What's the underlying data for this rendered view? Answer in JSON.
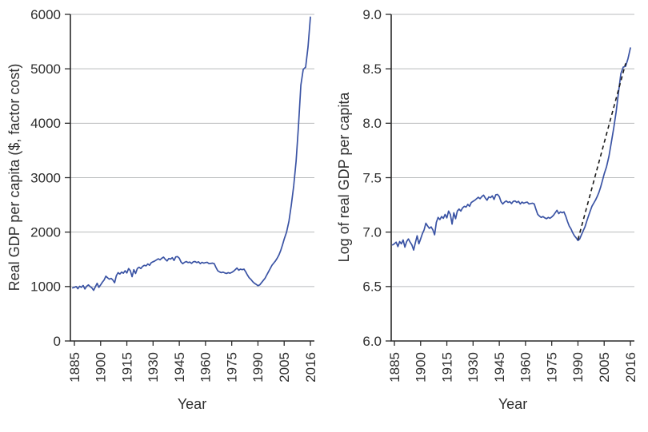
{
  "figure": {
    "background": "#ffffff",
    "line_color": "#3a53a4",
    "grid_color": "#b9bbbd",
    "axis_color": "#2a2a2a",
    "text_color": "#2e2e2e",
    "trend_color": "#1a1a1a"
  },
  "chart_data": [
    {
      "type": "line",
      "panel": "left",
      "title": "",
      "xlabel": "Year",
      "ylabel": "Real GDP per capita ($, factor cost)",
      "x_tick_labels": [
        "1885",
        "1900",
        "1915",
        "1930",
        "1945",
        "1960",
        "1975",
        "1990",
        "2005",
        "2016"
      ],
      "x_tick_years": [
        1885,
        1900,
        1915,
        1930,
        1945,
        1960,
        1975,
        1990,
        2005,
        2016
      ],
      "y_tick_labels": [
        "0",
        "1000",
        "2000",
        "3000",
        "4000",
        "5000",
        "6000"
      ],
      "y_tick_values": [
        0,
        1000,
        2000,
        3000,
        4000,
        5000,
        6000
      ],
      "ylim": [
        0,
        6000
      ],
      "xlim": [
        1884,
        2016
      ],
      "grid": "horizontal",
      "legend": "none",
      "series": [
        {
          "name": "real-gdp-per-capita",
          "color": "#3a53a4",
          "years_start": 1884,
          "values": [
            975,
            985,
            1000,
            960,
            1005,
            985,
            1020,
            955,
            1005,
            1030,
            1000,
            975,
            930,
            995,
            1060,
            985,
            1030,
            1080,
            1120,
            1190,
            1160,
            1135,
            1150,
            1120,
            1070,
            1200,
            1255,
            1230,
            1265,
            1245,
            1290,
            1250,
            1330,
            1290,
            1180,
            1310,
            1240,
            1330,
            1355,
            1330,
            1370,
            1390,
            1380,
            1415,
            1390,
            1440,
            1455,
            1470,
            1490,
            1510,
            1490,
            1520,
            1540,
            1500,
            1470,
            1515,
            1505,
            1530,
            1480,
            1545,
            1550,
            1520,
            1450,
            1420,
            1445,
            1460,
            1440,
            1450,
            1425,
            1455,
            1460,
            1440,
            1455,
            1420,
            1445,
            1430,
            1440,
            1445,
            1420,
            1425,
            1430,
            1420,
            1350,
            1290,
            1270,
            1255,
            1265,
            1250,
            1240,
            1255,
            1245,
            1260,
            1280,
            1310,
            1340,
            1300,
            1320,
            1310,
            1320,
            1270,
            1210,
            1160,
            1130,
            1090,
            1060,
            1040,
            1015,
            1030,
            1070,
            1110,
            1150,
            1210,
            1270,
            1330,
            1390,
            1430,
            1470,
            1520,
            1580,
            1660,
            1760,
            1870,
            2000,
            2200,
            2500,
            2850,
            3300,
            3950,
            4700,
            4990,
            5030,
            5400,
            5950
          ]
        }
      ]
    },
    {
      "type": "line",
      "panel": "right",
      "title": "",
      "xlabel": "Year",
      "ylabel": "Log of real GDP per capita",
      "x_tick_labels": [
        "1885",
        "1900",
        "1915",
        "1930",
        "1945",
        "1960",
        "1975",
        "1990",
        "2005",
        "2016"
      ],
      "x_tick_years": [
        1885,
        1900,
        1915,
        1930,
        1945,
        1960,
        1975,
        1990,
        2005,
        2016
      ],
      "y_tick_labels": [
        "6.0",
        "6.5",
        "7.0",
        "7.5",
        "8.0",
        "8.5",
        "9.0"
      ],
      "y_tick_values": [
        6.0,
        6.5,
        7.0,
        7.5,
        8.0,
        8.5,
        9.0
      ],
      "ylim": [
        6.0,
        9.0
      ],
      "xlim": [
        1884,
        2016
      ],
      "grid": "horizontal",
      "legend": "none",
      "series": [
        {
          "name": "log-real-gdp-per-capita",
          "color": "#3a53a4",
          "derived": "natural_log_of_left_panel_values"
        }
      ],
      "trend_line": {
        "style": "dashed",
        "color": "#1a1a1a",
        "name": "average-growth-trend",
        "from": {
          "year": 1990,
          "value": 6.93
        },
        "to": {
          "year": 2014,
          "value": 8.55
        }
      }
    }
  ]
}
